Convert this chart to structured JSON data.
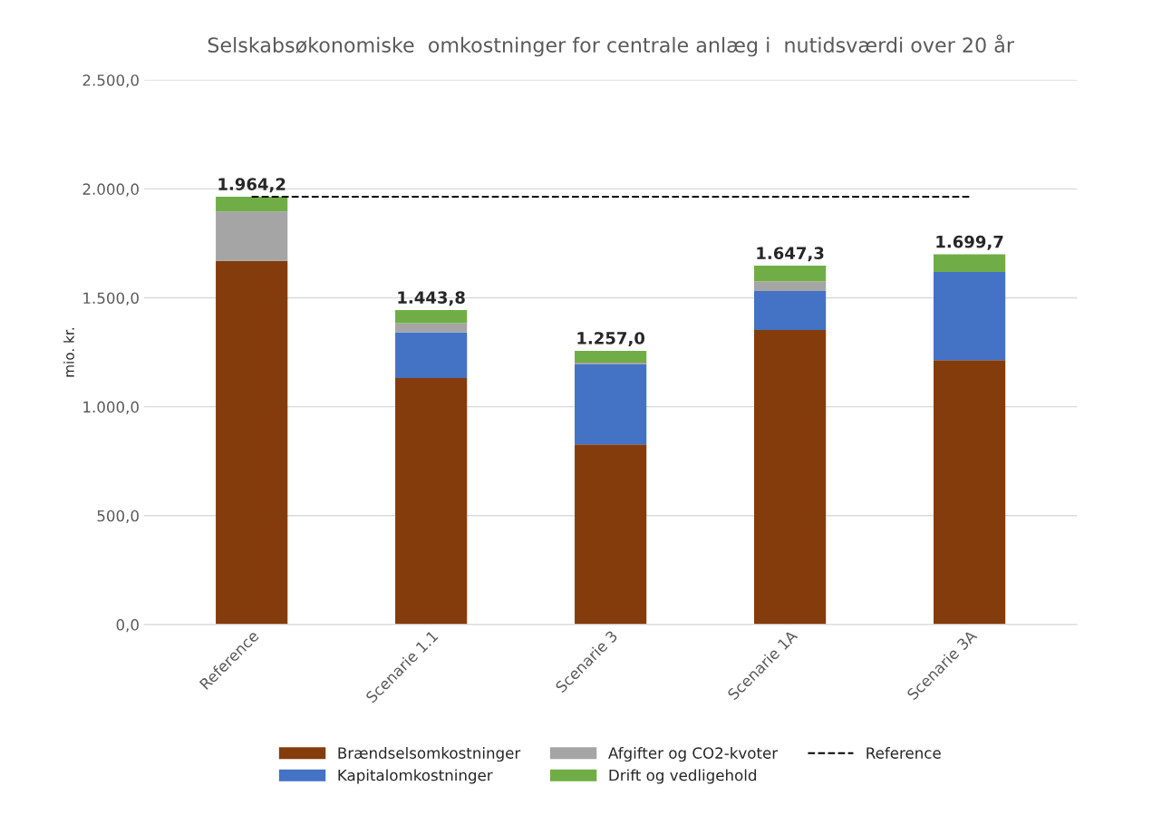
{
  "chart_data": {
    "type": "bar",
    "title": "Selskabsøkonomiske  omkostninger for centrale anlæg i  nutidsværdi over 20 år",
    "ylabel": "mio. kr.",
    "categories": [
      "Reference",
      "Scenarie 1.1",
      "Scenarie 3",
      "Scenarie 1A",
      "Scenarie 3A"
    ],
    "stacked": true,
    "series": [
      {
        "name": "Brændselsomkostninger",
        "color": "#843c0c",
        "values": [
          1670,
          1132,
          827,
          1352,
          1214
        ]
      },
      {
        "name": "Kapitalomkostninger",
        "color": "#4472c4",
        "values": [
          0,
          210,
          367,
          179,
          405
        ]
      },
      {
        "name": "Afgifter og CO2-kvoter",
        "color": "#a5a5a5",
        "values": [
          227,
          42,
          8,
          44,
          0
        ]
      },
      {
        "name": "Drift og vedligehold",
        "color": "#70ad47",
        "values": [
          67.2,
          59.8,
          55,
          72.3,
          80.7
        ]
      },
      {
        "name": "Reference",
        "type": "line",
        "color": "#000000",
        "line_style": "dashed",
        "values": [
          1964.2,
          1964.2,
          1964.2,
          1964.2,
          1964.2
        ]
      }
    ],
    "totals": [
      "1.964,2",
      "1.443,8",
      "1.257,0",
      "1.647,3",
      "1.699,7"
    ],
    "ylim": [
      0,
      2500
    ],
    "yticks": [
      {
        "value": 0,
        "label": "0,0"
      },
      {
        "value": 500,
        "label": "500,0"
      },
      {
        "value": 1000,
        "label": "1.000,0"
      },
      {
        "value": 1500,
        "label": "1.500,0"
      },
      {
        "value": 2000,
        "label": "2.000,0"
      },
      {
        "value": 2500,
        "label": "2.500,0"
      }
    ],
    "grid": "y",
    "legend": "bottom"
  }
}
